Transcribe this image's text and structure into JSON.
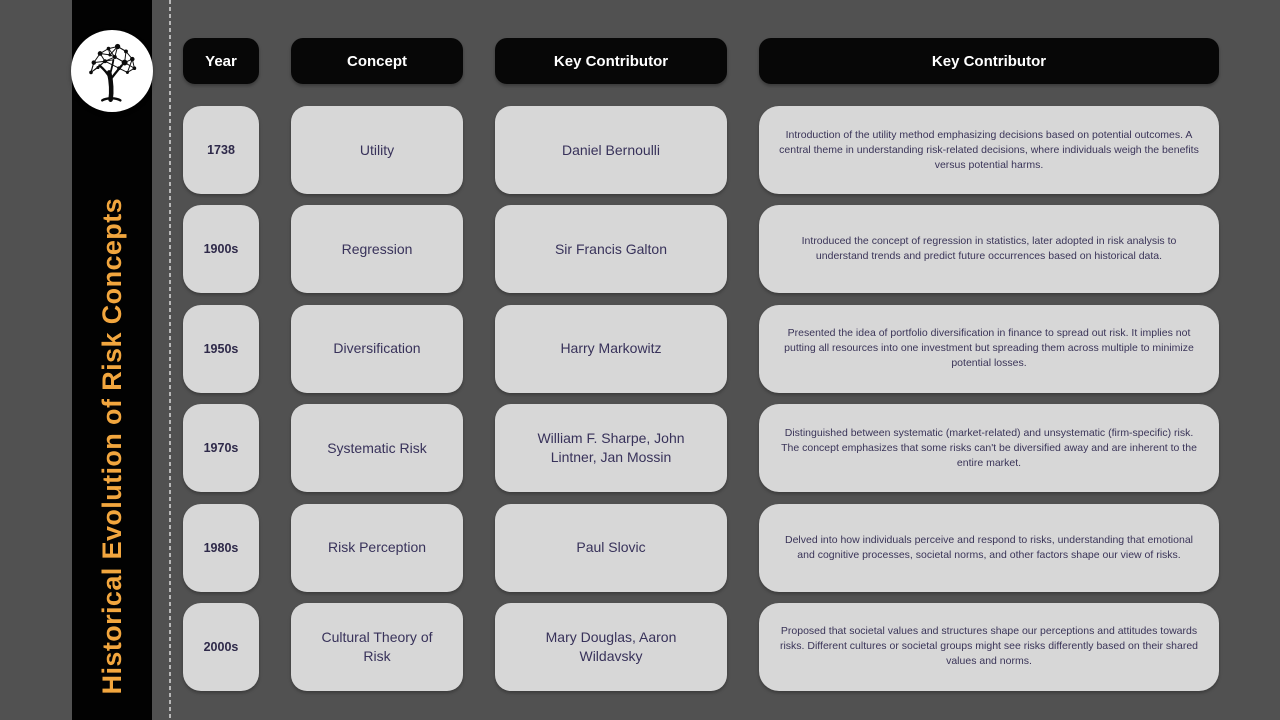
{
  "sidebar": {
    "title": "Historical Evolution of Risk Concepts",
    "logo_icon": "network-tree-logo"
  },
  "table": {
    "headers": [
      "Year",
      "Concept",
      "Key Contributor",
      "Key Contributor"
    ],
    "rows": [
      {
        "year": "1738",
        "concept": "Utility",
        "contributor": "Daniel Bernoulli",
        "description": "Introduction of the utility method emphasizing decisions based on potential outcomes. A central theme in understanding risk-related decisions, where individuals weigh the benefits versus potential harms."
      },
      {
        "year": "1900s",
        "concept": "Regression",
        "contributor": "Sir Francis Galton",
        "description": "Introduced the concept of regression in statistics, later adopted in risk analysis to understand trends and predict future occurrences based on historical data."
      },
      {
        "year": "1950s",
        "concept": "Diversification",
        "contributor": "Harry Markowitz",
        "description": "Presented the idea of portfolio diversification in finance to spread out risk. It implies not putting all resources into one investment but spreading them across multiple to minimize potential losses."
      },
      {
        "year": "1970s",
        "concept": "Systematic Risk",
        "contributor": "William F. Sharpe, John Lintner, Jan Mossin",
        "description": "Distinguished between systematic (market-related) and unsystematic (firm-specific) risk. The concept emphasizes that some risks can't be diversified away and are inherent to the entire market."
      },
      {
        "year": "1980s",
        "concept": "Risk Perception",
        "contributor": "Paul Slovic",
        "description": "Delved into how individuals perceive and respond to risks, understanding that emotional and cognitive processes, societal norms, and other factors shape our view of risks."
      },
      {
        "year": "2000s",
        "concept": "Cultural Theory of Risk",
        "contributor": "Mary Douglas, Aaron Wildavsky",
        "description": "Proposed that societal values and structures shape our perceptions and attitudes towards risks. Different cultures or societal groups might see risks differently based on their shared values and norms."
      }
    ]
  },
  "colors": {
    "background": "#515151",
    "sidebar_bg": "#000000",
    "accent_orange": "#F2A63E",
    "header_bg": "#070707",
    "header_text": "#FFFFFF",
    "cell_bg": "#D7D7D7",
    "cell_text": "#38325A",
    "divider": "#B8B8B8"
  }
}
